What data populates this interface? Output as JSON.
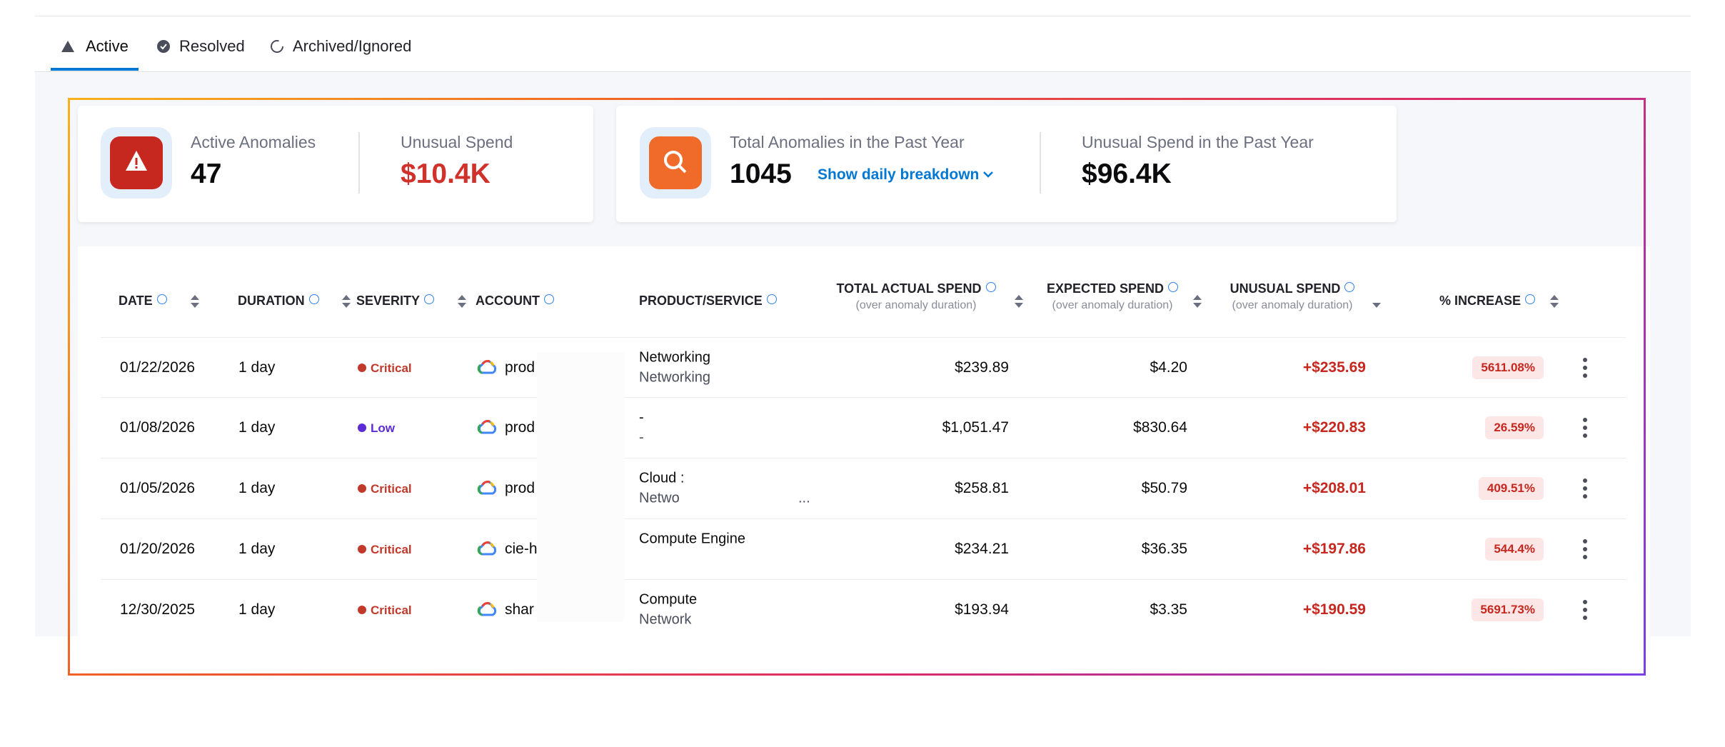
{
  "tabs": [
    {
      "label": "Active"
    },
    {
      "label": "Resolved"
    },
    {
      "label": "Archived/Ignored"
    }
  ],
  "summary": {
    "cards": [
      {
        "items": [
          {
            "label": "Active Anomalies",
            "value": "47"
          },
          {
            "label": "Unusual Spend",
            "value": "$10.4K"
          }
        ]
      },
      {
        "items": [
          {
            "label": "Total Anomalies in the Past Year",
            "value": "1045",
            "link": "Show daily breakdown"
          },
          {
            "label": "Unusual Spend in the Past Year",
            "value": "$96.4K"
          }
        ]
      }
    ]
  },
  "table": {
    "columns": [
      {
        "label": "DATE"
      },
      {
        "label": "DURATION"
      },
      {
        "label": "SEVERITY"
      },
      {
        "label": "ACCOUNT"
      },
      {
        "label": "PRODUCT/SERVICE"
      },
      {
        "label": "TOTAL ACTUAL SPEND",
        "sub": "(over anomaly duration)"
      },
      {
        "label": "EXPECTED SPEND",
        "sub": "(over anomaly duration)"
      },
      {
        "label": "UNUSUAL SPEND",
        "sub": "(over anomaly duration)"
      },
      {
        "label": "% INCREASE"
      }
    ],
    "rows": [
      {
        "date": "01/22/2026",
        "duration": "1 day",
        "severity": "Critical",
        "severity_color": "#c0392b",
        "account": "prod",
        "product": [
          "Networking",
          "Networking"
        ],
        "total": "$239.89",
        "expected": "$4.20",
        "unusual": "+$235.69",
        "increase": "5611.08%"
      },
      {
        "date": "01/08/2026",
        "duration": "1 day",
        "severity": "Low",
        "severity_color": "#5b2bd6",
        "account": "prod",
        "product": [
          "-",
          "-"
        ],
        "total": "$1,051.47",
        "expected": "$830.64",
        "unusual": "+$220.83",
        "increase": "26.59%"
      },
      {
        "date": "01/05/2026",
        "duration": "1 day",
        "severity": "Critical",
        "severity_color": "#c0392b",
        "account": "prod",
        "product": [
          "Cloud :",
          "Netwo",
          "..."
        ],
        "total": "$258.81",
        "expected": "$50.79",
        "unusual": "+$208.01",
        "increase": "409.51%"
      },
      {
        "date": "01/20/2026",
        "duration": "1 day",
        "severity": "Critical",
        "severity_color": "#c0392b",
        "account": "cie-h",
        "product": [
          "Compute Engine"
        ],
        "total": "$234.21",
        "expected": "$36.35",
        "unusual": "+$197.86",
        "increase": "544.4%"
      },
      {
        "date": "12/30/2025",
        "duration": "1 day",
        "severity": "Critical",
        "severity_color": "#c0392b",
        "account": "shar",
        "product": [
          "Compute",
          "Network"
        ],
        "total": "$193.94",
        "expected": "$3.35",
        "unusual": "+$190.59",
        "increase": "5691.73%"
      }
    ]
  }
}
